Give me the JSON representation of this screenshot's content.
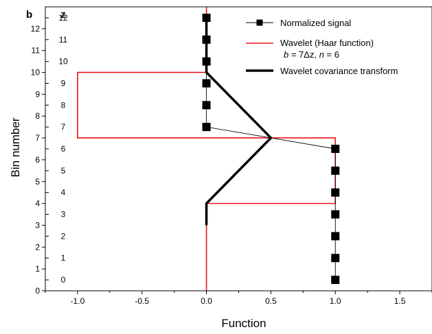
{
  "chart_data": {
    "type": "line",
    "panel_label": "b",
    "xlabel": "Function",
    "ylabel": "Bin number",
    "secondary_ylabel": "z",
    "xlim": [
      -1.25,
      1.75
    ],
    "ylim": [
      0,
      13
    ],
    "xticks": [
      -1.0,
      -0.5,
      0.0,
      0.5,
      1.0,
      1.5
    ],
    "xtick_labels": [
      "-1.0",
      "-0.5",
      "0.0",
      "0.5",
      "1.0",
      "1.5"
    ],
    "yticks": [
      0,
      1,
      2,
      3,
      4,
      5,
      6,
      7,
      8,
      9,
      10,
      11,
      12
    ],
    "ytick_labels": [
      "0",
      "1",
      "2",
      "3",
      "4",
      "5",
      "6",
      "7",
      "8",
      "9",
      "10",
      "11",
      "12"
    ],
    "z_tick_positions": [
      0.5,
      1.5,
      2.5,
      3.5,
      4.5,
      5.5,
      6.5,
      7.5,
      8.5,
      9.5,
      10.5,
      11.5,
      12.5
    ],
    "z_tick_labels": [
      "0",
      "1",
      "2",
      "3",
      "4",
      "5",
      "6",
      "7",
      "8",
      "9",
      "10",
      "11",
      "12"
    ],
    "legend_position": "top-right",
    "series": [
      {
        "name": "Normalized signal",
        "style": "line-square-markers",
        "color": "#000000",
        "x": [
          1,
          1,
          1,
          1,
          1,
          1,
          1,
          0,
          0,
          0,
          0,
          0,
          0
        ],
        "y": [
          0.5,
          1.5,
          2.5,
          3.5,
          4.5,
          5.5,
          6.5,
          7.5,
          8.5,
          9.5,
          10.5,
          11.5,
          12.5
        ]
      },
      {
        "name": "Wavelet (Haar function)",
        "name_extra": "b = 7Δz, n = 6",
        "style": "line",
        "color": "#e8141b",
        "x": [
          0,
          0,
          1,
          1,
          -1,
          -1,
          0,
          0
        ],
        "y": [
          0,
          4,
          4,
          7,
          7,
          10,
          10,
          13
        ]
      },
      {
        "name": "Wavelet covariance transform",
        "style": "thick-line",
        "color": "#000000",
        "x": [
          0,
          0,
          0.5,
          0,
          0
        ],
        "y": [
          3,
          4,
          7,
          10,
          12.5
        ]
      }
    ]
  }
}
